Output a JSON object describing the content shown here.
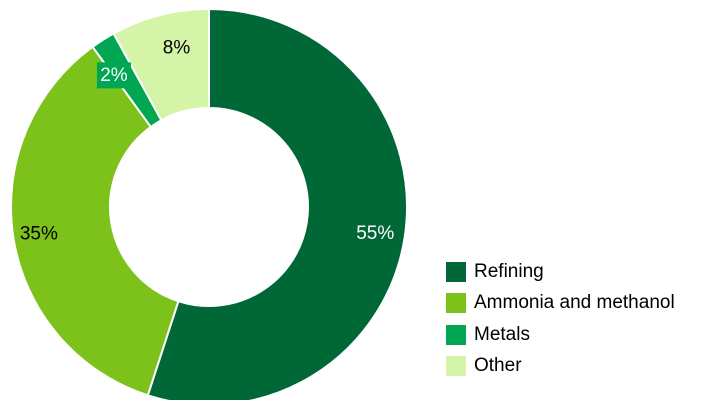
{
  "chart_data": {
    "type": "pie",
    "donut": true,
    "categories": [
      "Refining",
      "Ammonia and methanol",
      "Metals",
      "Other"
    ],
    "values": [
      55,
      35,
      2,
      8
    ],
    "labels": [
      "55%",
      "35%",
      "2%",
      "8%"
    ],
    "colors": [
      "#006837",
      "#7dc11b",
      "#00a651",
      "#d4f5a8"
    ],
    "label_colors": [
      "#ffffff",
      "#000000",
      "#ffffff",
      "#000000"
    ],
    "legend_position": "bottom-right"
  }
}
